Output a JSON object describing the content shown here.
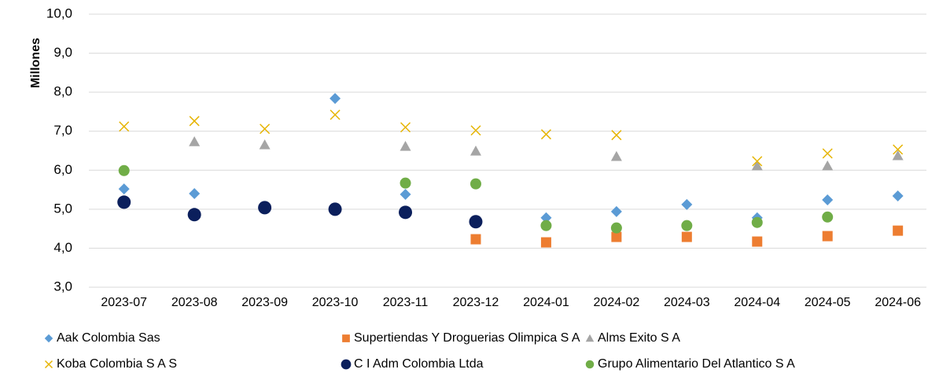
{
  "chart_data": {
    "type": "scatter",
    "y_label": "Millones",
    "categories": [
      "2023-07",
      "2023-08",
      "2023-09",
      "2023-10",
      "2023-11",
      "2023-12",
      "2024-01",
      "2024-02",
      "2024-03",
      "2024-04",
      "2024-05",
      "2024-06"
    ],
    "ylim": [
      3,
      10
    ],
    "yticks": [
      {
        "value": 3,
        "label": "3,0"
      },
      {
        "value": 4,
        "label": "4,0"
      },
      {
        "value": 5,
        "label": "5,0"
      },
      {
        "value": 6,
        "label": "6,0"
      },
      {
        "value": 7,
        "label": "7,0"
      },
      {
        "value": 8,
        "label": "8,0"
      },
      {
        "value": 9,
        "label": "9,0"
      },
      {
        "value": 10,
        "label": "10,0"
      }
    ],
    "grid": true,
    "legend": "bottom",
    "series": [
      {
        "name": "Aak Colombia Sas",
        "color": "#5b9bd5",
        "marker": "diamond",
        "values": [
          5.52,
          5.4,
          null,
          7.84,
          5.38,
          null,
          4.78,
          4.94,
          5.12,
          4.78,
          5.24,
          5.34
        ]
      },
      {
        "name": "Supertiendas Y Droguerias Olimpica S A",
        "color": "#ed7d31",
        "marker": "square",
        "values": [
          null,
          null,
          null,
          null,
          null,
          4.23,
          4.15,
          4.29,
          4.29,
          4.17,
          4.31,
          4.45
        ]
      },
      {
        "name": "Alms Exito S A",
        "color": "#a5a5a5",
        "marker": "triangle",
        "values": [
          null,
          6.73,
          6.65,
          null,
          6.61,
          6.49,
          null,
          6.35,
          null,
          6.11,
          6.11,
          6.37
        ]
      },
      {
        "name": "Koba Colombia S A S",
        "color": "#e6b400",
        "marker": "x",
        "values": [
          7.12,
          7.26,
          7.06,
          7.42,
          7.1,
          7.02,
          6.92,
          6.9,
          null,
          6.23,
          6.43,
          6.53
        ]
      },
      {
        "name": "C I Adm Colombia Ltda",
        "color": "#0b1f5c",
        "marker": "bigcircle",
        "values": [
          5.18,
          4.86,
          5.04,
          5.0,
          4.92,
          4.68,
          null,
          null,
          null,
          null,
          null,
          null
        ]
      },
      {
        "name": "Grupo Alimentario Del Atlantico S A",
        "color": "#70ad47",
        "marker": "circle",
        "values": [
          5.99,
          null,
          null,
          null,
          5.67,
          5.65,
          4.58,
          4.52,
          4.58,
          4.66,
          4.8,
          null
        ]
      }
    ]
  }
}
